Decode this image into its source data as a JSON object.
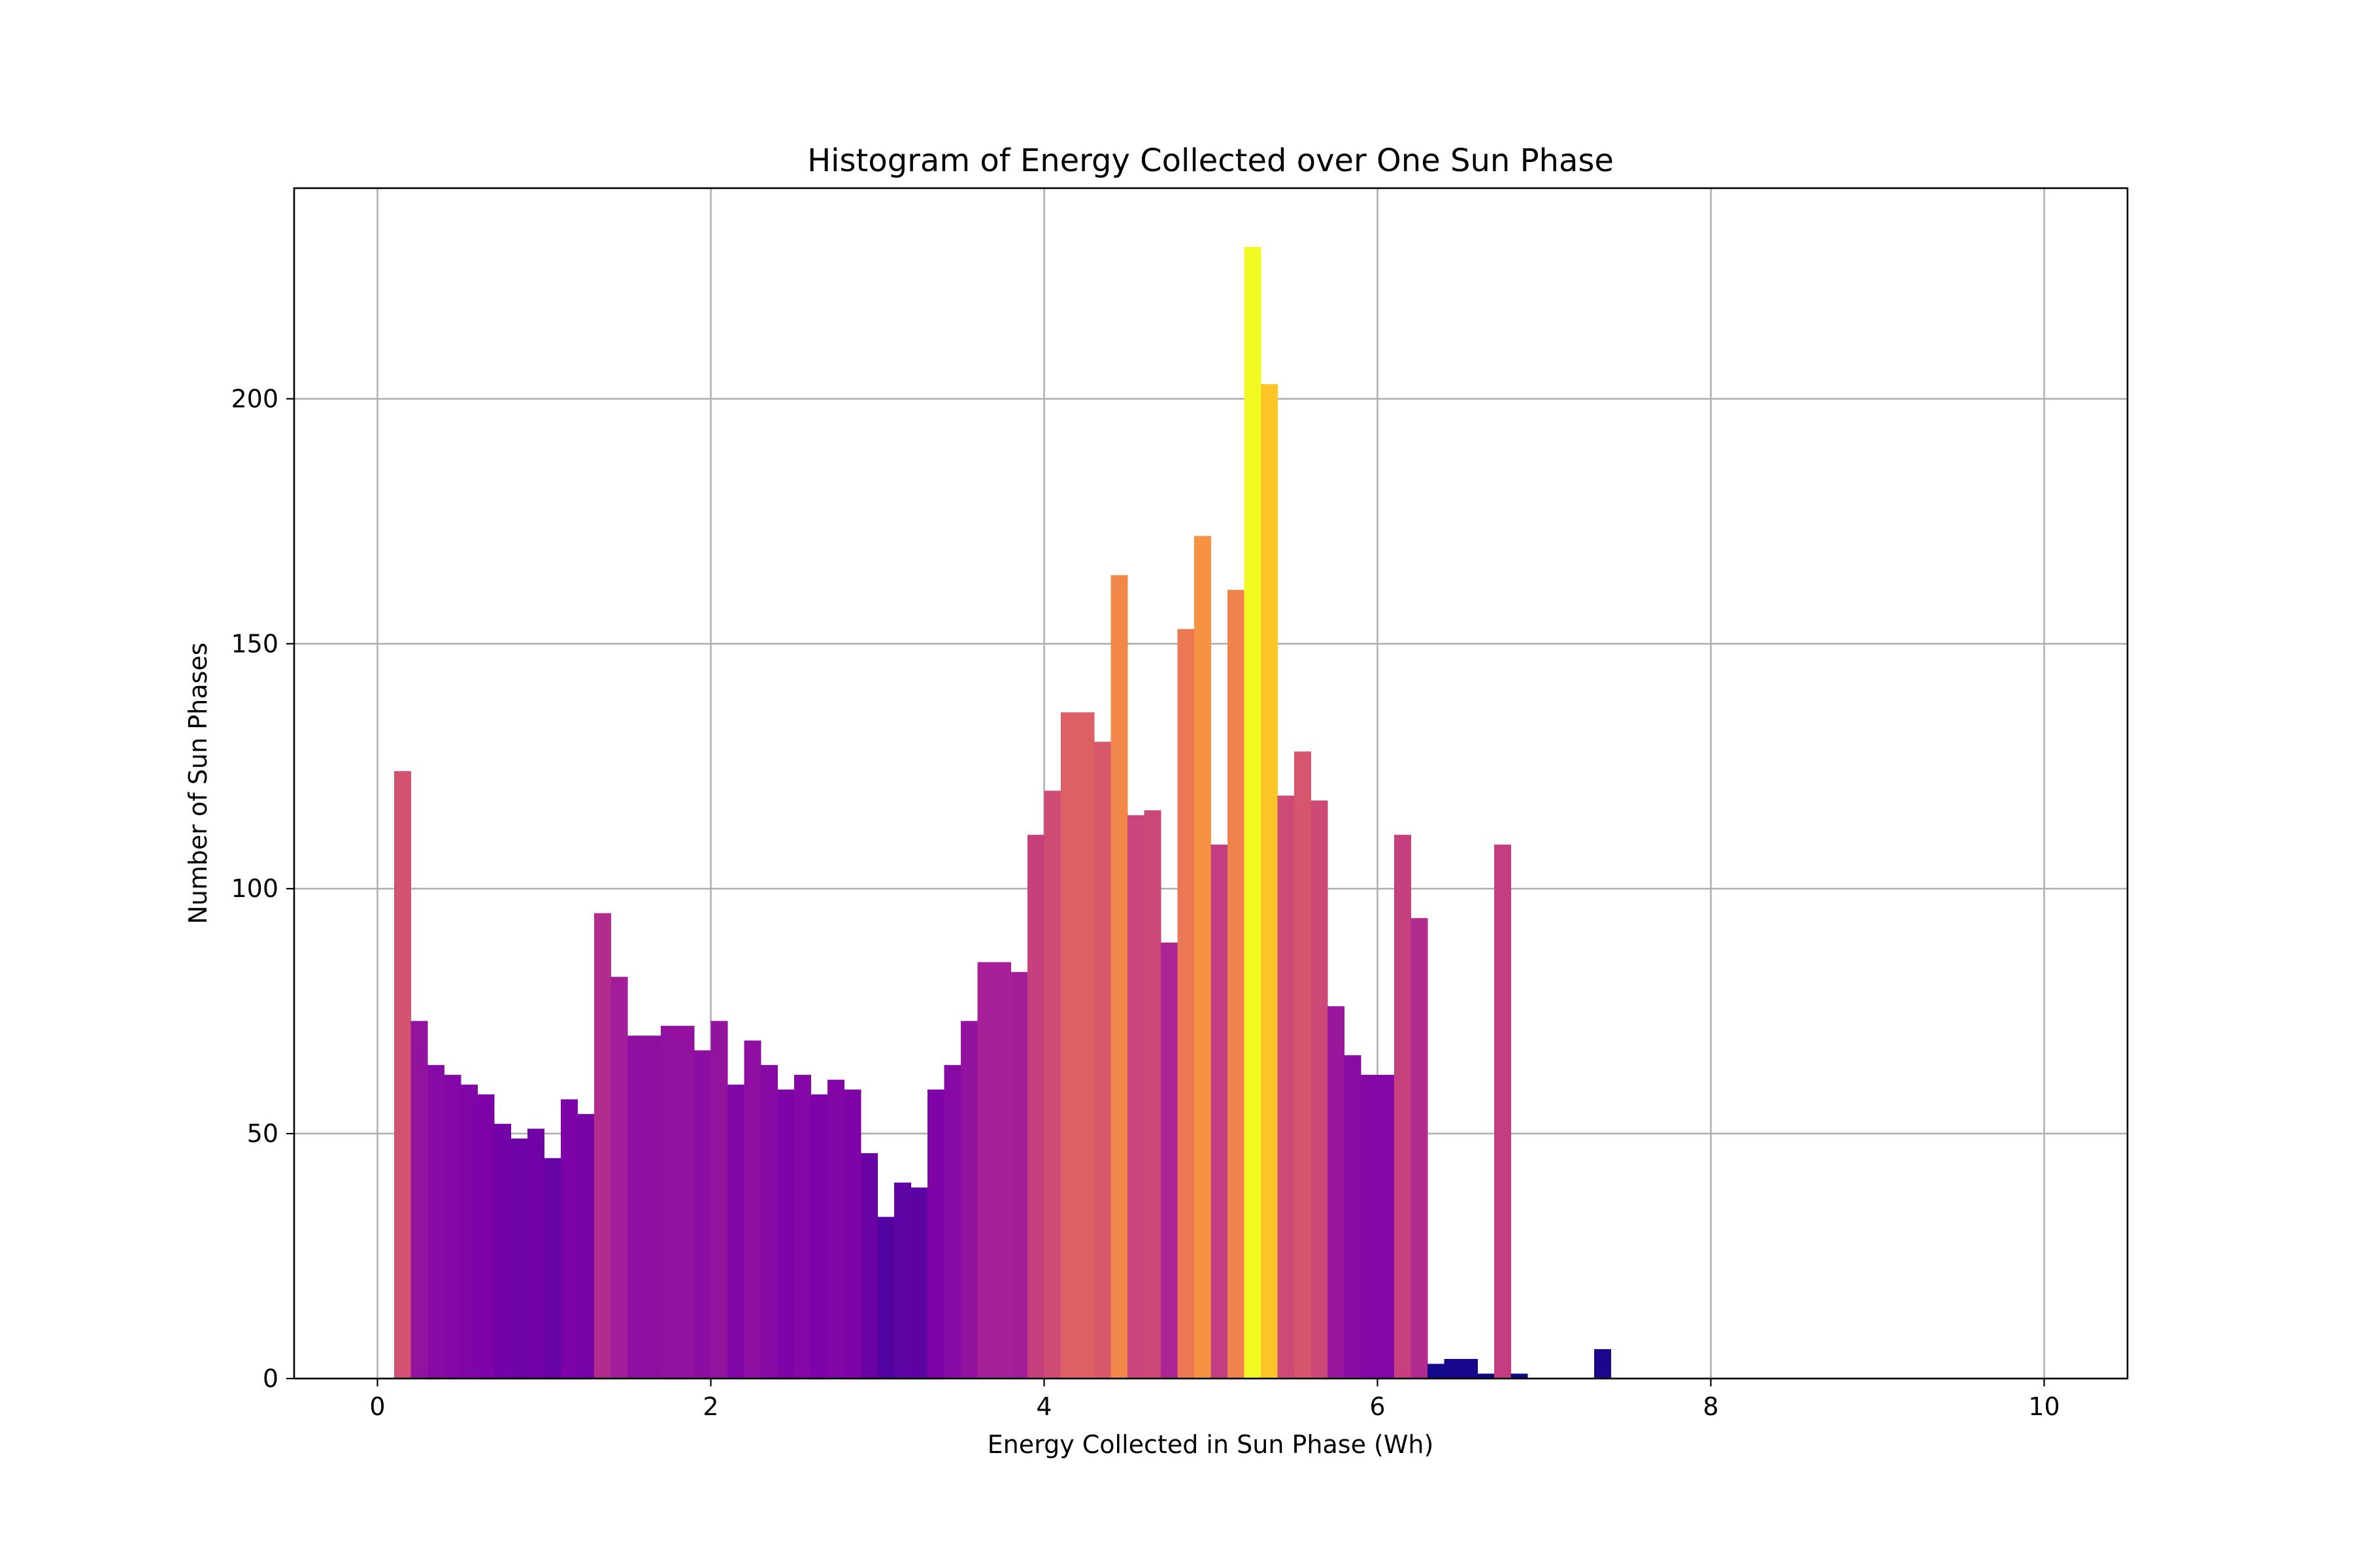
{
  "chart_data": {
    "type": "bar",
    "title": "Histogram of Energy Collected over One Sun Phase",
    "xlabel": "Energy Collected in Sun Phase (Wh)",
    "ylabel": "Number of Sun Phases",
    "xlim": [
      -0.5,
      10.5
    ],
    "ylim": [
      0,
      243
    ],
    "xticks": [
      0,
      2,
      4,
      6,
      8,
      10
    ],
    "yticks": [
      0,
      50,
      100,
      150,
      200
    ],
    "grid": true,
    "colormap": "plasma",
    "bin_width": 0.1,
    "bin_start": 0.1,
    "values": [
      124,
      73,
      64,
      62,
      60,
      58,
      52,
      49,
      51,
      45,
      57,
      54,
      95,
      82,
      70,
      70,
      72,
      72,
      67,
      73,
      60,
      69,
      64,
      59,
      62,
      58,
      61,
      59,
      46,
      33,
      40,
      39,
      59,
      64,
      73,
      85,
      85,
      83,
      111,
      120,
      136,
      136,
      130,
      164,
      115,
      116,
      89,
      153,
      172,
      109,
      161,
      231,
      203,
      119,
      128,
      118,
      76,
      66,
      62,
      62,
      111,
      94,
      3,
      4,
      4,
      1,
      109,
      1,
      0,
      0,
      0,
      0,
      6
    ]
  }
}
